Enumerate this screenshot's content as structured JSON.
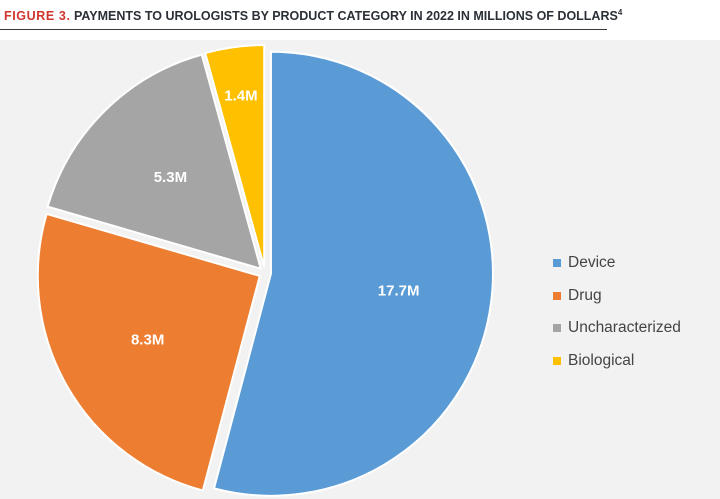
{
  "header": {
    "figure_label": "FIGURE 3.",
    "title": "PAYMENTS TO UROLOGISTS BY PRODUCT CATEGORY IN 2022 IN MILLIONS OF DOLLARS",
    "footnote": "4"
  },
  "chart_data": {
    "type": "pie",
    "title": "PAYMENTS TO UROLOGISTS BY PRODUCT CATEGORY IN 2022 IN MILLIONS OF DOLLARS",
    "unit": "millions of dollars",
    "legend_position": "right",
    "slices": [
      {
        "name": "Device",
        "value": 17.7,
        "label": "17.7M",
        "color": "#5b9bd5"
      },
      {
        "name": "Drug",
        "value": 8.3,
        "label": "8.3M",
        "color": "#ed7d31"
      },
      {
        "name": "Uncharacterized",
        "value": 5.3,
        "label": "5.3M",
        "color": "#a5a5a5"
      },
      {
        "name": "Biological",
        "value": 1.4,
        "label": "1.4M",
        "color": "#ffc000"
      }
    ]
  }
}
